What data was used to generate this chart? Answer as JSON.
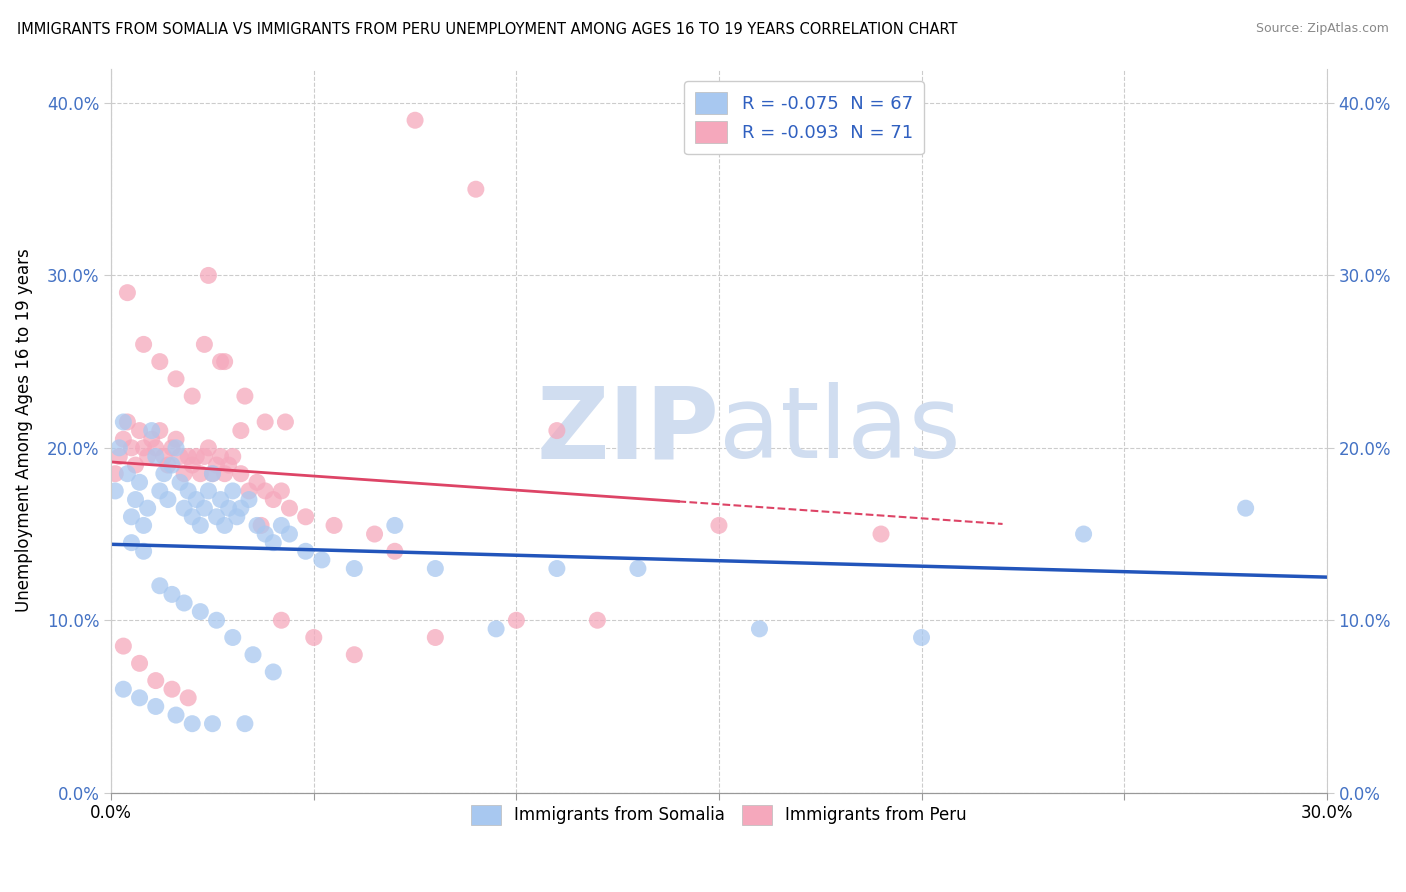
{
  "title": "IMMIGRANTS FROM SOMALIA VS IMMIGRANTS FROM PERU UNEMPLOYMENT AMONG AGES 16 TO 19 YEARS CORRELATION CHART",
  "source": "Source: ZipAtlas.com",
  "ylabel": "Unemployment Among Ages 16 to 19 years",
  "xlabel_somalia": "Immigrants from Somalia",
  "xlabel_peru": "Immigrants from Peru",
  "xlim": [
    0.0,
    0.3
  ],
  "ylim": [
    0.0,
    0.42
  ],
  "yticks": [
    0.0,
    0.1,
    0.2,
    0.3,
    0.4
  ],
  "xticks_shown": [
    0.0,
    0.3
  ],
  "xticks_grid": [
    0.0,
    0.05,
    0.1,
    0.15,
    0.2,
    0.25,
    0.3
  ],
  "ytick_labels": [
    "0.0%",
    "10.0%",
    "20.0%",
    "30.0%",
    "40.0%"
  ],
  "somalia_color": "#a8c8f0",
  "peru_color": "#f5a8bc",
  "somalia_line_color": "#2255bb",
  "peru_line_color": "#dd4466",
  "legend_somalia_label": "R = -0.075  N = 67",
  "legend_peru_label": "R = -0.093  N = 71",
  "R_somalia": -0.075,
  "N_somalia": 67,
  "R_peru": -0.093,
  "N_peru": 71,
  "watermark_zip": "ZIP",
  "watermark_atlas": "atlas",
  "somalia_x": [
    0.001,
    0.002,
    0.003,
    0.004,
    0.005,
    0.006,
    0.007,
    0.008,
    0.009,
    0.01,
    0.011,
    0.012,
    0.013,
    0.014,
    0.015,
    0.016,
    0.017,
    0.018,
    0.019,
    0.02,
    0.021,
    0.022,
    0.023,
    0.024,
    0.025,
    0.026,
    0.027,
    0.028,
    0.029,
    0.03,
    0.031,
    0.032,
    0.034,
    0.036,
    0.038,
    0.04,
    0.042,
    0.044,
    0.048,
    0.052,
    0.06,
    0.07,
    0.08,
    0.095,
    0.11,
    0.13,
    0.16,
    0.2,
    0.24,
    0.28,
    0.005,
    0.008,
    0.012,
    0.015,
    0.018,
    0.022,
    0.026,
    0.03,
    0.035,
    0.04,
    0.003,
    0.007,
    0.011,
    0.016,
    0.02,
    0.025,
    0.033
  ],
  "somalia_y": [
    0.175,
    0.2,
    0.215,
    0.185,
    0.16,
    0.17,
    0.18,
    0.155,
    0.165,
    0.21,
    0.195,
    0.175,
    0.185,
    0.17,
    0.19,
    0.2,
    0.18,
    0.165,
    0.175,
    0.16,
    0.17,
    0.155,
    0.165,
    0.175,
    0.185,
    0.16,
    0.17,
    0.155,
    0.165,
    0.175,
    0.16,
    0.165,
    0.17,
    0.155,
    0.15,
    0.145,
    0.155,
    0.15,
    0.14,
    0.135,
    0.13,
    0.155,
    0.13,
    0.095,
    0.13,
    0.13,
    0.095,
    0.09,
    0.15,
    0.165,
    0.145,
    0.14,
    0.12,
    0.115,
    0.11,
    0.105,
    0.1,
    0.09,
    0.08,
    0.07,
    0.06,
    0.055,
    0.05,
    0.045,
    0.04,
    0.04,
    0.04
  ],
  "peru_x": [
    0.001,
    0.002,
    0.003,
    0.004,
    0.005,
    0.006,
    0.007,
    0.008,
    0.009,
    0.01,
    0.011,
    0.012,
    0.013,
    0.014,
    0.015,
    0.016,
    0.017,
    0.018,
    0.019,
    0.02,
    0.021,
    0.022,
    0.023,
    0.024,
    0.025,
    0.026,
    0.027,
    0.028,
    0.029,
    0.03,
    0.032,
    0.034,
    0.036,
    0.038,
    0.04,
    0.042,
    0.044,
    0.048,
    0.055,
    0.065,
    0.075,
    0.09,
    0.11,
    0.15,
    0.19,
    0.004,
    0.008,
    0.012,
    0.016,
    0.02,
    0.024,
    0.028,
    0.033,
    0.038,
    0.043,
    0.003,
    0.007,
    0.011,
    0.015,
    0.019,
    0.023,
    0.027,
    0.032,
    0.037,
    0.042,
    0.05,
    0.06,
    0.07,
    0.08,
    0.1,
    0.12
  ],
  "peru_y": [
    0.185,
    0.195,
    0.205,
    0.215,
    0.2,
    0.19,
    0.21,
    0.2,
    0.195,
    0.205,
    0.2,
    0.21,
    0.195,
    0.19,
    0.2,
    0.205,
    0.195,
    0.185,
    0.195,
    0.19,
    0.195,
    0.185,
    0.195,
    0.2,
    0.185,
    0.19,
    0.195,
    0.185,
    0.19,
    0.195,
    0.185,
    0.175,
    0.18,
    0.175,
    0.17,
    0.175,
    0.165,
    0.16,
    0.155,
    0.15,
    0.39,
    0.35,
    0.21,
    0.155,
    0.15,
    0.29,
    0.26,
    0.25,
    0.24,
    0.23,
    0.3,
    0.25,
    0.23,
    0.215,
    0.215,
    0.085,
    0.075,
    0.065,
    0.06,
    0.055,
    0.26,
    0.25,
    0.21,
    0.155,
    0.1,
    0.09,
    0.08,
    0.14,
    0.09,
    0.1,
    0.1
  ]
}
